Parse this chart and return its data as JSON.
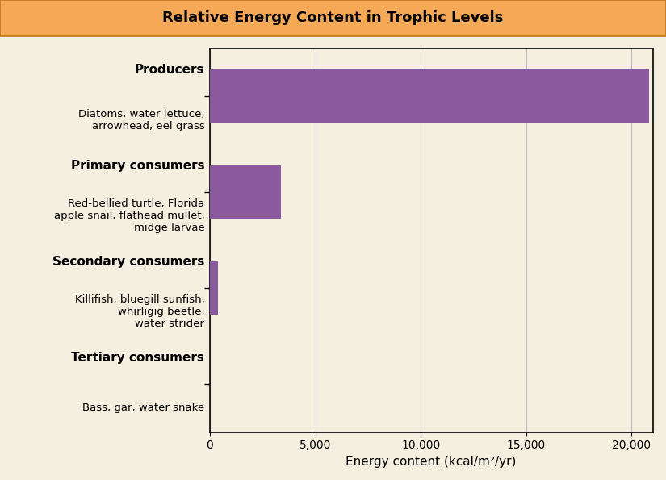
{
  "title": "Relative Energy Content in Trophic Levels",
  "title_bg_color": "#F5A855",
  "figure_bg_color": "#F5EFE0",
  "plot_bg_color": "#F5EFE0",
  "bar_color": "#8B5A9E",
  "categories": [
    "Producers",
    "Primary consumers",
    "Secondary consumers",
    "Tertiary consumers"
  ],
  "category_subtitles": [
    "Diatoms, water lettuce,\narrowhead, eel grass",
    "Red-bellied turtle, Florida\napple snail, flathead mullet,\nmidge larvae",
    "Killifish, bluegill sunfish,\nwhirligig beetle,\nwater strider",
    "Bass, gar, water snake"
  ],
  "values": [
    20810,
    3368,
    383,
    21
  ],
  "xlim": [
    0,
    21000
  ],
  "xticks": [
    0,
    5000,
    10000,
    15000,
    20000
  ],
  "xticklabels": [
    "0",
    "5,000",
    "10,000",
    "15,000",
    "20,000"
  ],
  "xlabel": "Energy content (kcal/m²/yr)",
  "bar_height": 0.55,
  "title_fontsize": 13,
  "label_fontsize": 10,
  "xlabel_fontsize": 11,
  "cat_fontsize": 11,
  "sub_fontsize": 9.5
}
